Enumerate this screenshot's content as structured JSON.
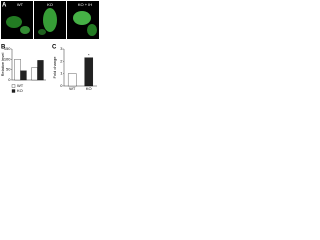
{
  "panel_a": {
    "label": "A",
    "images": [
      "WT",
      "KO",
      "KO + IH"
    ]
  },
  "chart_data": [
    {
      "type": "bar",
      "label": "B",
      "y_label": "Relative level",
      "categories": [
        null,
        null
      ],
      "series": [
        {
          "name": "WT",
          "color": "#ffffff",
          "values": [
            100,
            60
          ]
        },
        {
          "name": "KO",
          "color": "#222222",
          "values": [
            45,
            95
          ]
        }
      ],
      "ylim": [
        0,
        150
      ],
      "yticks": [
        0,
        50,
        100,
        150
      ]
    },
    {
      "type": "bar",
      "label": "C",
      "y_label": "Fold change",
      "categories": [
        "WT",
        "KO"
      ],
      "values": [
        1,
        2.3
      ],
      "colors": [
        "#ffffff",
        "#222222"
      ],
      "significance": [
        null,
        "*"
      ],
      "ylim": [
        0,
        3
      ],
      "yticks": [
        0,
        1,
        2,
        3
      ]
    }
  ]
}
